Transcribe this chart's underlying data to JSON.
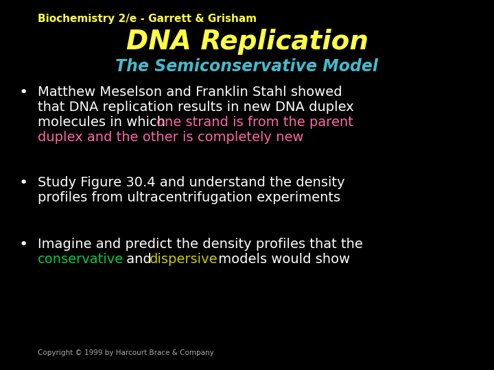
{
  "background_color": "#000000",
  "header_text": "Biochemistry 2/e - Garrett & Grisham",
  "header_color": "#ffff44",
  "header_fontsize": 11,
  "title_text": "DNA Replication",
  "title_color": "#ffff44",
  "title_fontsize": 28,
  "subtitle_text": "The Semiconservative Model",
  "subtitle_color": "#44bbcc",
  "subtitle_fontsize": 17,
  "bullet_fontsize": 14,
  "bullet_color": "#ffffff",
  "pink_color": "#ff66aa",
  "green_color": "#00cc44",
  "yellow_color": "#cccc00",
  "copyright_text": "Copyright © 1999 by Harcourt Brace & Company",
  "copyright_color": "#aaaaaa",
  "copyright_fontsize": 7.5
}
